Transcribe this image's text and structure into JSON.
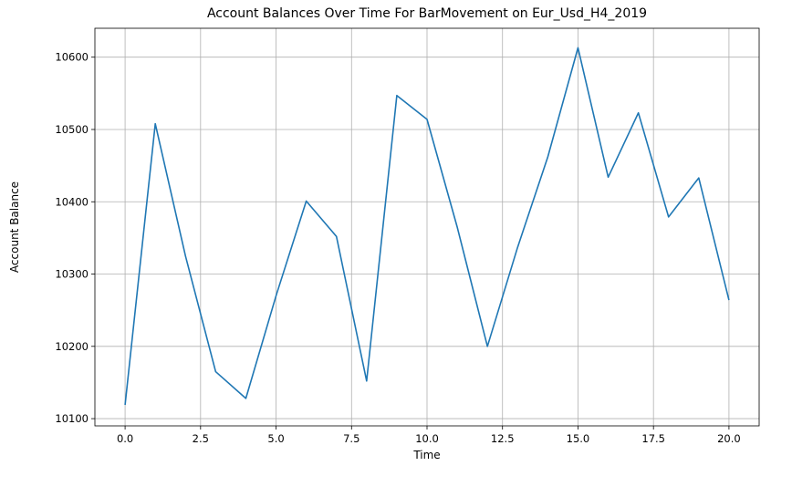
{
  "chart_data": {
    "type": "line",
    "title": "Account Balances Over Time For BarMovement on Eur_Usd_H4_2019",
    "xlabel": "Time",
    "ylabel": "Account Balance",
    "xlim": [
      -1.0,
      21.0
    ],
    "ylim": [
      10090,
      10640
    ],
    "xticks": [
      0.0,
      2.5,
      5.0,
      7.5,
      10.0,
      12.5,
      15.0,
      17.5,
      20.0
    ],
    "xtick_labels": [
      "0.0",
      "2.5",
      "5.0",
      "7.5",
      "10.0",
      "12.5",
      "15.0",
      "17.5",
      "20.0"
    ],
    "yticks": [
      10100,
      10200,
      10300,
      10400,
      10500,
      10600
    ],
    "ytick_labels": [
      "10100",
      "10200",
      "10300",
      "10400",
      "10500",
      "10600"
    ],
    "grid": true,
    "series": [
      {
        "color": "#1f77b4",
        "x": [
          0,
          1,
          2,
          3,
          4,
          5,
          6,
          7,
          8,
          9,
          10,
          11,
          12,
          13,
          14,
          15,
          16,
          17,
          18,
          19,
          20
        ],
        "y": [
          10119,
          10508,
          10325,
          10165,
          10128,
          10270,
          10401,
          10352,
          10152,
          10547,
          10514,
          10365,
          10200,
          10337,
          10462,
          10613,
          10434,
          10523,
          10379,
          10433,
          10264
        ]
      }
    ]
  }
}
